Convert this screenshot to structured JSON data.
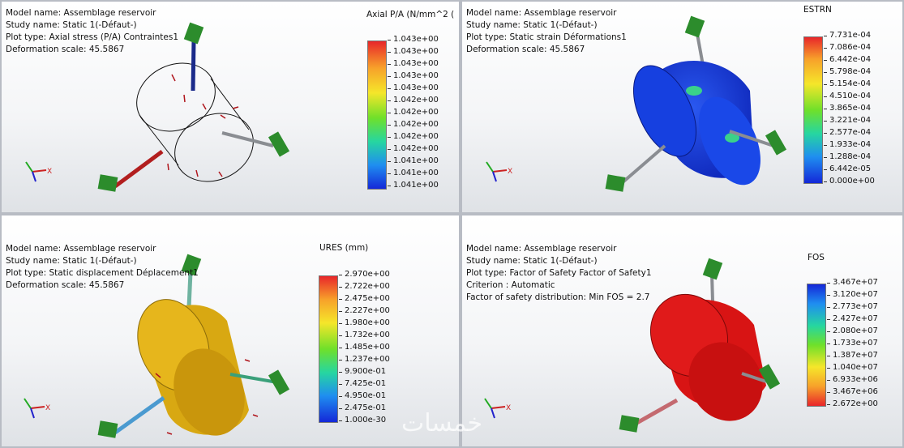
{
  "panels": {
    "p1": {
      "info": [
        "Model name: Assemblage reservoir",
        "Study name: Static 1(-Défaut-)",
        "Plot type: Axial stress (P/A) Contraintes1",
        "Deformation scale: 45.5867"
      ],
      "legend_title": "Axial P/A (N/mm^2 (",
      "ticks": [
        "1.043e+00",
        "1.043e+00",
        "1.043e+00",
        "1.043e+00",
        "1.043e+00",
        "1.042e+00",
        "1.042e+00",
        "1.042e+00",
        "1.042e+00",
        "1.042e+00",
        "1.041e+00",
        "1.041e+00",
        "1.041e+00"
      ]
    },
    "p2": {
      "info": [
        "Model name: Assemblage reservoir",
        "Study name: Static 1(-Défaut-)",
        "Plot type: Static strain Déformations1",
        "Deformation scale: 45.5867"
      ],
      "legend_title": "ESTRN",
      "ticks": [
        "7.731e-04",
        "7.086e-04",
        "6.442e-04",
        "5.798e-04",
        "5.154e-04",
        "4.510e-04",
        "3.865e-04",
        "3.221e-04",
        "2.577e-04",
        "1.933e-04",
        "1.288e-04",
        "6.442e-05",
        "0.000e+00"
      ]
    },
    "p3": {
      "info": [
        "Model name: Assemblage reservoir",
        "Study name: Static 1(-Défaut-)",
        "Plot type: Static displacement Déplacement1",
        "Deformation scale: 45.5867"
      ],
      "legend_title": "URES (mm)",
      "ticks": [
        "2.970e+00",
        "2.722e+00",
        "2.475e+00",
        "2.227e+00",
        "1.980e+00",
        "1.732e+00",
        "1.485e+00",
        "1.237e+00",
        "9.900e-01",
        "7.425e-01",
        "4.950e-01",
        "2.475e-01",
        "1.000e-30"
      ]
    },
    "p4": {
      "info": [
        "Model name: Assemblage reservoir",
        "Study name: Static 1(-Défaut-)",
        "Plot type: Factor of Safety Factor of Safety1",
        "Criterion : Automatic",
        "Factor of safety distribution: Min FOS = 2.7"
      ],
      "legend_title": "FOS",
      "ticks": [
        "3.467e+07",
        "3.120e+07",
        "2.773e+07",
        "2.427e+07",
        "2.080e+07",
        "1.733e+07",
        "1.387e+07",
        "1.040e+07",
        "6.933e+06",
        "3.467e+06",
        "2.672e+00"
      ]
    }
  },
  "colors": {
    "ramp_high_to_low": [
      "#e8262a",
      "#f7a12a",
      "#f5e62a",
      "#6fe02a",
      "#26d6a0",
      "#1f8ef0",
      "#1428d8"
    ],
    "tank_strain": "#1b3fd6",
    "tank_displacement": "#d8a812",
    "tank_fos": "#d81414"
  },
  "watermark": "خمسات"
}
